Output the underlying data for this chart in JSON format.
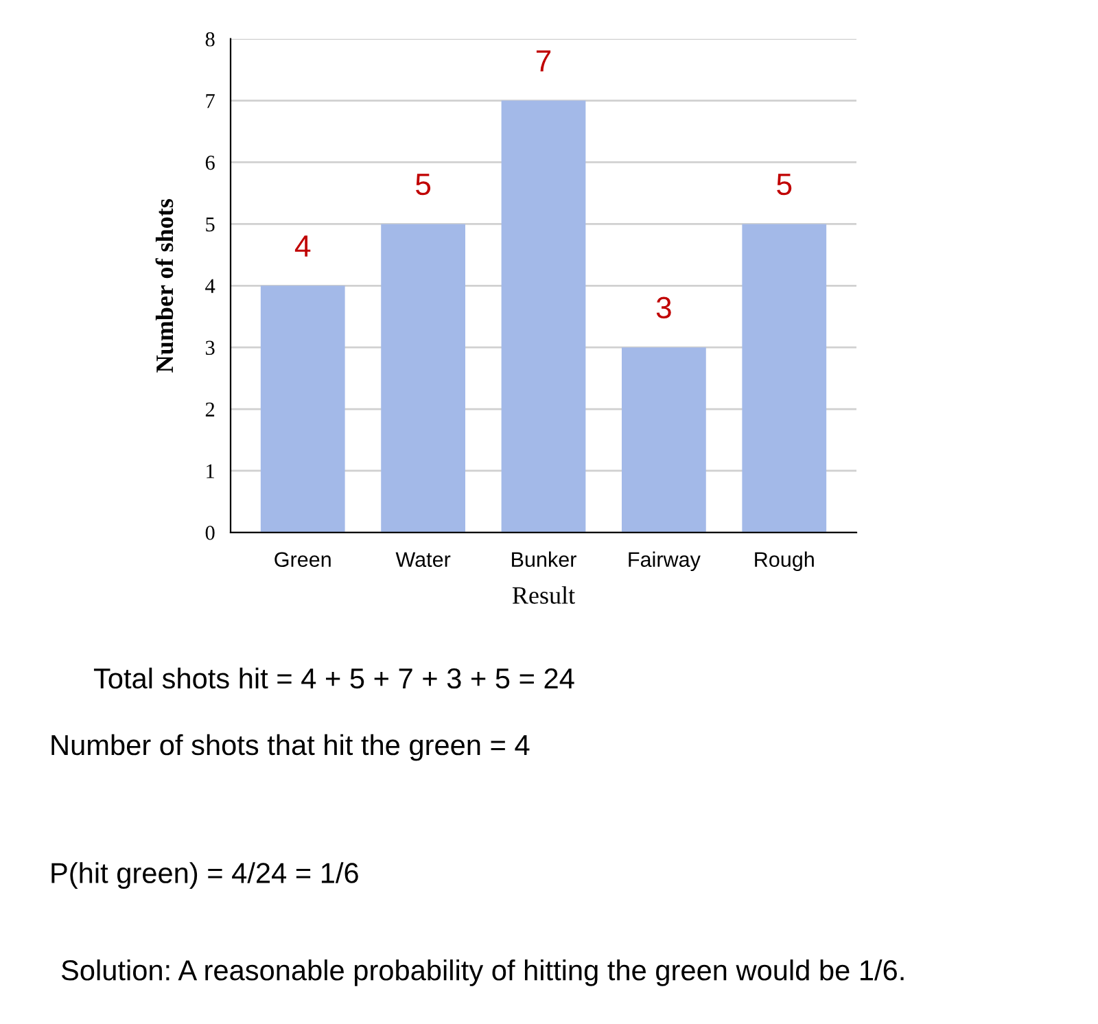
{
  "chart_data": {
    "type": "bar",
    "xlabel": "Result",
    "ylabel": "Number of shots",
    "categories": [
      "Green",
      "Water",
      "Bunker",
      "Fairway",
      "Rough"
    ],
    "values": [
      4,
      5,
      7,
      3,
      5
    ],
    "color": "#a3b9e8",
    "ylim": [
      0,
      8
    ],
    "yticks": [
      0,
      1,
      2,
      3,
      4,
      5,
      6,
      7,
      8
    ],
    "grid": "y",
    "data_labels": true,
    "annotations": [
      "Total shots hit = 4 + 5 + 7 + 3 + 5 = 24",
      "Number of shots that hit the green = 4",
      "P(hit green) = 4/24 = 1/6",
      "Solution: A reasonable probability of hitting the green would be 1/6."
    ]
  }
}
